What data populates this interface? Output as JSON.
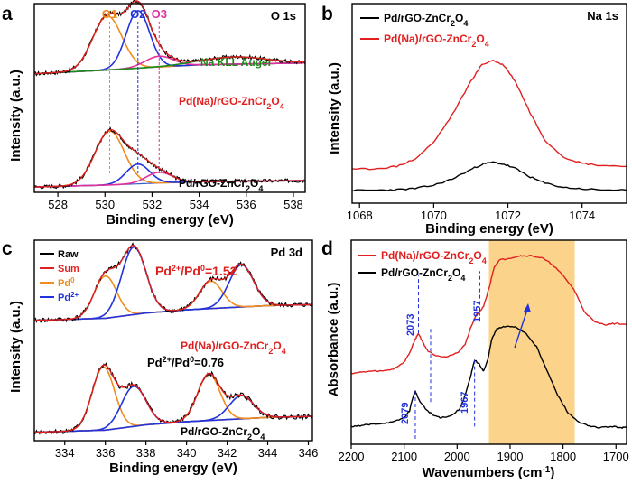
{
  "chart_data": [
    {
      "panel": "a",
      "type": "line",
      "title": "O 1s",
      "xlabel": "Binding energy  (eV)",
      "ylabel": "Intensity (a.u.)",
      "xlim": [
        527,
        538.5
      ],
      "x_ticks": [
        528,
        530,
        532,
        534,
        536,
        538
      ],
      "peak_markers": [
        {
          "label": "O1",
          "x": 530.2,
          "color": "#f08c1e"
        },
        {
          "label": "O2",
          "x": 531.4,
          "color": "#2233dd"
        },
        {
          "label": "O3",
          "x": 532.3,
          "color": "#e0309a"
        }
      ],
      "annotations": [
        {
          "text": "Na KLL Auger",
          "color": "#1a8a1a"
        },
        {
          "text": "Pd(Na)/rGO-ZnCr",
          "sub": "2",
          "tail": "O",
          "sub2": "4",
          "color": "#e02020"
        },
        {
          "text": "Pd/rGO-ZnCr",
          "sub": "2",
          "tail": "O",
          "sub2": "4",
          "color": "#000000"
        }
      ],
      "samples": [
        {
          "name": "Pd(Na)/rGO-ZnCr2O4",
          "offset": 0.62,
          "background": [
            [
              527.0,
              0.04
            ],
            [
              530,
              0.06
            ],
            [
              532,
              0.075
            ],
            [
              534,
              0.09
            ],
            [
              538.5,
              0.1
            ]
          ],
          "components": [
            {
              "name": "O1",
              "center": 530.1,
              "height": 0.3,
              "width": 0.62,
              "color": "#f08c1e"
            },
            {
              "name": "O2",
              "center": 531.4,
              "height": 0.32,
              "width": 0.5,
              "color": "#2233dd"
            },
            {
              "name": "O3",
              "center": 532.3,
              "height": 0.06,
              "width": 0.6,
              "color": "#e0309a"
            },
            {
              "name": "Na KLL Auger",
              "center": 535.5,
              "height": 0.04,
              "width": 1.4,
              "color": "#1a8a1a"
            }
          ]
        },
        {
          "name": "Pd/rGO-ZnCr2O4",
          "offset": 0.0,
          "background": [
            [
              527.0,
              0.03
            ],
            [
              530,
              0.04
            ],
            [
              532,
              0.05
            ],
            [
              534,
              0.06
            ],
            [
              538.5,
              0.065
            ]
          ],
          "components": [
            {
              "name": "O1",
              "center": 530.2,
              "height": 0.3,
              "width": 0.62,
              "color": "#f08c1e"
            },
            {
              "name": "O2",
              "center": 531.4,
              "height": 0.11,
              "width": 0.5,
              "color": "#2233dd"
            },
            {
              "name": "O3",
              "center": 532.3,
              "height": 0.06,
              "width": 0.55,
              "color": "#e0309a"
            }
          ]
        }
      ]
    },
    {
      "panel": "b",
      "type": "line",
      "title": "Na 1s",
      "xlabel": "Binding energy  (eV)",
      "ylabel": "Intensity (a.u.)",
      "xlim": [
        1067.8,
        1075.2
      ],
      "x_ticks": [
        1068,
        1070,
        1072,
        1074
      ],
      "legend": "top-left",
      "series": [
        {
          "name": "Pd/rGO-ZnCr",
          "sub": "2",
          "tail": "O",
          "sub2": "4",
          "color": "#000000",
          "x": [
            1067.8,
            1068.5,
            1069,
            1069.5,
            1070,
            1070.5,
            1071,
            1071.3,
            1071.6,
            1071.9,
            1072.2,
            1072.6,
            1073,
            1073.5,
            1074,
            1074.5,
            1075.2
          ],
          "y": [
            0.06,
            0.062,
            0.064,
            0.07,
            0.085,
            0.115,
            0.16,
            0.185,
            0.195,
            0.185,
            0.165,
            0.125,
            0.095,
            0.075,
            0.068,
            0.064,
            0.062
          ]
        },
        {
          "name": "Pd(Na)/rGO-ZnCr",
          "sub": "2",
          "tail": "O",
          "sub2": "4",
          "color": "#e02020",
          "x": [
            1067.8,
            1068.5,
            1069,
            1069.5,
            1070,
            1070.5,
            1071,
            1071.3,
            1071.6,
            1071.9,
            1072.2,
            1072.6,
            1073,
            1073.5,
            1074,
            1074.5,
            1075.2
          ],
          "y": [
            0.16,
            0.165,
            0.175,
            0.21,
            0.29,
            0.42,
            0.58,
            0.66,
            0.68,
            0.655,
            0.58,
            0.43,
            0.3,
            0.22,
            0.19,
            0.18,
            0.175
          ]
        }
      ]
    },
    {
      "panel": "c",
      "type": "line",
      "title": "Pd 3d",
      "xlabel": "Binding energy  (eV)",
      "ylabel": "Intensity (a.u.)",
      "xlim": [
        332.5,
        346.2
      ],
      "x_ticks": [
        334,
        336,
        338,
        340,
        342,
        344,
        346
      ],
      "legend_entries": [
        {
          "label": "Raw",
          "color": "#000000"
        },
        {
          "label": "Sum",
          "color": "#e02020"
        },
        {
          "label": "Pd",
          "sup": "0",
          "color": "#f08c1e"
        },
        {
          "label": "Pd",
          "sup": "2+",
          "color": "#2233dd"
        }
      ],
      "annotations": [
        {
          "text": "Pd(Na)/rGO-ZnCr",
          "sub": "2",
          "tail": "O",
          "sub2": "4",
          "color": "#e02020"
        },
        {
          "text": "Pd/rGO-ZnCr",
          "sub": "2",
          "tail": "O",
          "sub2": "4",
          "color": "#000000"
        }
      ],
      "ratios": [
        {
          "sample": "Pd(Na)/rGO-ZnCr2O4",
          "value": "1.52",
          "color": "#e02020"
        },
        {
          "sample": "Pd/rGO-ZnCr2O4",
          "value": "0.76",
          "color": "#000000"
        }
      ],
      "samples": [
        {
          "name": "Pd(Na)/rGO-ZnCr2O4",
          "offset": 0.52,
          "background": [
            [
              332.5,
              0.05
            ],
            [
              336,
              0.06
            ],
            [
              338,
              0.085
            ],
            [
              340,
              0.1
            ],
            [
              342,
              0.11
            ],
            [
              344,
              0.12
            ],
            [
              346.2,
              0.125
            ]
          ],
          "components": [
            {
              "name": "Pd0 3d5/2",
              "center": 336.0,
              "height": 0.2,
              "width": 0.55,
              "color": "#f08c1e"
            },
            {
              "name": "Pd2+ 3d5/2",
              "center": 337.4,
              "height": 0.32,
              "width": 0.6,
              "color": "#2233dd"
            },
            {
              "name": "Pd0 3d3/2",
              "center": 341.2,
              "height": 0.13,
              "width": 0.55,
              "color": "#f08c1e"
            },
            {
              "name": "Pd2+ 3d3/2",
              "center": 342.7,
              "height": 0.2,
              "width": 0.6,
              "color": "#2233dd"
            }
          ]
        },
        {
          "name": "Pd/rGO-ZnCr2O4",
          "offset": 0.0,
          "background": [
            [
              332.5,
              0.04
            ],
            [
              336,
              0.05
            ],
            [
              338,
              0.075
            ],
            [
              340,
              0.09
            ],
            [
              342,
              0.1
            ],
            [
              344,
              0.11
            ],
            [
              346.2,
              0.115
            ]
          ],
          "components": [
            {
              "name": "Pd0 3d5/2",
              "center": 335.9,
              "height": 0.3,
              "width": 0.55,
              "color": "#f08c1e"
            },
            {
              "name": "Pd2+ 3d5/2",
              "center": 337.4,
              "height": 0.19,
              "width": 0.6,
              "color": "#2233dd"
            },
            {
              "name": "Pd0 3d3/2",
              "center": 341.1,
              "height": 0.22,
              "width": 0.55,
              "color": "#f08c1e"
            },
            {
              "name": "Pd2+ 3d3/2",
              "center": 342.7,
              "height": 0.11,
              "width": 0.6,
              "color": "#2233dd"
            }
          ]
        }
      ]
    },
    {
      "panel": "d",
      "type": "line",
      "xlabel": "Wavenumbers (cm",
      "xlabel_sup": "-1",
      "xlabel_tail": ")",
      "ylabel": "Absorbance (a.u.)",
      "xlim": [
        2200,
        1680
      ],
      "x_ticks": [
        2200,
        2100,
        2000,
        1900,
        1800,
        1700
      ],
      "highlight_band": [
        1940,
        1778
      ],
      "highlight_color": "#fbd38a",
      "legend": "top-left",
      "series": [
        {
          "name": "Pd(Na)/rGO-ZnCr",
          "sub": "2",
          "tail": "O",
          "sub2": "4",
          "color": "#e02020",
          "x": [
            2200,
            2180,
            2160,
            2140,
            2120,
            2100,
            2090,
            2080,
            2073,
            2065,
            2055,
            2040,
            2020,
            2000,
            1985,
            1975,
            1965,
            1957,
            1950,
            1945,
            1938,
            1930,
            1920,
            1900,
            1880,
            1860,
            1840,
            1820,
            1800,
            1780,
            1760,
            1740,
            1720,
            1700,
            1680
          ],
          "y": [
            0.32,
            0.325,
            0.33,
            0.33,
            0.34,
            0.37,
            0.41,
            0.47,
            0.5,
            0.46,
            0.42,
            0.4,
            0.395,
            0.41,
            0.45,
            0.52,
            0.58,
            0.6,
            0.62,
            0.66,
            0.72,
            0.8,
            0.83,
            0.84,
            0.85,
            0.85,
            0.84,
            0.81,
            0.76,
            0.7,
            0.6,
            0.55,
            0.54,
            0.545,
            0.54
          ]
        },
        {
          "name": "Pd/rGO-ZnCr",
          "sub": "2",
          "tail": "O",
          "sub2": "4",
          "color": "#000000",
          "x": [
            2200,
            2180,
            2160,
            2140,
            2120,
            2100,
            2090,
            2085,
            2079,
            2072,
            2060,
            2045,
            2030,
            2010,
            1995,
            1985,
            1975,
            1967,
            1958,
            1950,
            1942,
            1935,
            1925,
            1910,
            1890,
            1870,
            1850,
            1830,
            1810,
            1790,
            1770,
            1750,
            1730,
            1710,
            1690,
            1680
          ],
          "y": [
            0.08,
            0.085,
            0.09,
            0.095,
            0.1,
            0.12,
            0.15,
            0.2,
            0.24,
            0.2,
            0.16,
            0.13,
            0.12,
            0.13,
            0.16,
            0.22,
            0.3,
            0.38,
            0.36,
            0.33,
            0.38,
            0.47,
            0.52,
            0.53,
            0.53,
            0.5,
            0.44,
            0.33,
            0.22,
            0.14,
            0.1,
            0.08,
            0.075,
            0.08,
            0.075,
            0.075
          ]
        }
      ],
      "peak_annotations": [
        {
          "label": "2073",
          "x": 2073,
          "color": "#2233dd"
        },
        {
          "label": "1957",
          "x": 1957,
          "color": "#2233dd"
        },
        {
          "label": "2079",
          "x": 2079,
          "color": "#2233dd"
        },
        {
          "label": "1967",
          "x": 1967,
          "color": "#2233dd"
        }
      ]
    }
  ]
}
